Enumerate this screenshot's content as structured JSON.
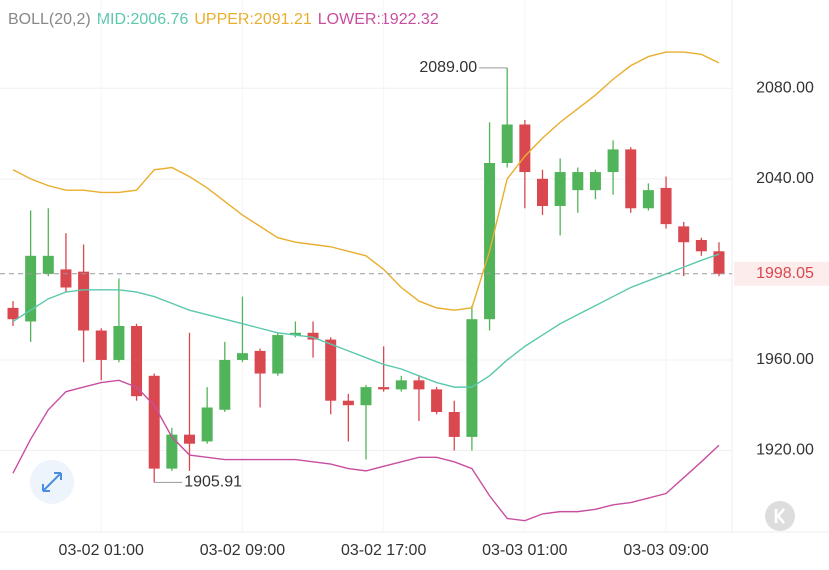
{
  "chart_data": {
    "type": "candlestick",
    "indicator": "BOLL(20,2)",
    "categories": [
      null,
      null,
      null,
      null,
      null,
      "03-02 01:00",
      null,
      null,
      null,
      null,
      null,
      null,
      null,
      "03-02 09:00",
      null,
      null,
      null,
      null,
      null,
      null,
      null,
      "03-02 17:00",
      null,
      null,
      null,
      null,
      null,
      null,
      null,
      "03-03 01:00",
      null,
      null,
      null,
      null,
      null,
      null,
      null,
      "03-03 09:00",
      null,
      null,
      null
    ],
    "open": [
      1983,
      1977,
      1998,
      2000,
      1999,
      1973,
      1960,
      1975,
      1953,
      1912,
      1927,
      1924,
      1938,
      1960,
      1964,
      1954,
      1971,
      1972,
      1969,
      1942,
      1940,
      1948,
      1947,
      1951,
      1947,
      1937,
      1926,
      1978,
      2047,
      2064,
      2040,
      2028,
      2035,
      2035,
      2043,
      2053,
      2027,
      2036,
      2019,
      2013,
      2008
    ],
    "high": [
      1986,
      2026,
      2027,
      2016,
      2011,
      1974,
      1996,
      1976,
      1954,
      1930,
      1972,
      1948,
      1968,
      1988,
      1965,
      1972,
      1977,
      1977,
      1970,
      1945,
      1949,
      1966,
      1953,
      1953,
      1948,
      1942,
      1984,
      2065,
      2089,
      2066,
      2044,
      2049,
      2045,
      2044,
      2057,
      2054,
      2038,
      2041,
      2021,
      2014,
      2012
    ],
    "low": [
      1975,
      1968,
      1997,
      1990,
      1959,
      1951,
      1959,
      1942,
      1905.91,
      1911,
      1911,
      1923,
      1937,
      1959,
      1939,
      1953,
      1970,
      1961,
      1936,
      1924,
      1916,
      1946,
      1946,
      1933,
      1936,
      1920,
      1920,
      1973,
      2045,
      2027,
      2024,
      2015,
      2025,
      2031,
      2033,
      2025,
      2026,
      2018,
      1997,
      2006,
      1997
    ],
    "close": [
      1978,
      2006,
      2006,
      1992,
      1973,
      1960,
      1975,
      1944,
      1912,
      1927,
      1923,
      1939,
      1960,
      1963,
      1954,
      1971,
      1972,
      1969,
      1942,
      1940,
      1948,
      1947,
      1951,
      1947,
      1937,
      1926,
      1978,
      2047,
      2064,
      2043,
      2028,
      2043,
      2043,
      2043,
      2053,
      2027,
      2035,
      2020,
      2012,
      2008,
      1998.05
    ],
    "up_color": "#52b45a",
    "down_color": "#d9474f",
    "series": [
      {
        "name": "MID:",
        "color": "#5bc8ad",
        "values": [
          1977,
          1982,
          1987,
          1990,
          1991,
          1991,
          1991,
          1990,
          1988,
          1985,
          1982,
          1980,
          1978,
          1976,
          1974,
          1972,
          1971,
          1970,
          1967,
          1964,
          1961,
          1958,
          1956,
          1953,
          1950,
          1948,
          1948,
          1953,
          1960,
          1966,
          1971,
          1976,
          1980,
          1984,
          1988,
          1992,
          1995,
          1998,
          2001,
          2004,
          2006.76
        ]
      },
      {
        "name": "UPPER:",
        "color": "#e9ae2e",
        "values": [
          2044,
          2040,
          2037,
          2035,
          2035,
          2034,
          2034,
          2035,
          2044,
          2045,
          2041,
          2036,
          2030,
          2024,
          2019,
          2014,
          2012,
          2011,
          2010,
          2008,
          2006,
          2000,
          1992,
          1986,
          1983,
          1982,
          1983,
          2008,
          2040,
          2050,
          2058,
          2065,
          2071,
          2077,
          2084,
          2090,
          2094,
          2096,
          2096,
          2095,
          2091.21
        ]
      },
      {
        "name": "LOWER:",
        "color": "#c84fa0",
        "values": [
          1910,
          1925,
          1938,
          1946,
          1948,
          1950,
          1951,
          1948,
          1940,
          1926,
          1918,
          1917,
          1916,
          1916,
          1916,
          1916,
          1916,
          1915,
          1914,
          1912,
          1911,
          1913,
          1915,
          1917,
          1917,
          1915,
          1912,
          1900,
          1890,
          1889,
          1892,
          1893,
          1893,
          1894,
          1896,
          1897,
          1899,
          1901,
          1908,
          1915,
          1922.32
        ]
      }
    ],
    "max_label": "2089.00",
    "min_label": "1905.91",
    "ylim": [
      1884,
      2119
    ],
    "yticks": [
      {
        "value": 1920,
        "label": "1920.00"
      },
      {
        "value": 1960,
        "label": "1960.00"
      },
      {
        "value": 2040,
        "label": "2040.00"
      },
      {
        "value": 2080,
        "label": "2080.00"
      }
    ],
    "grid": true
  }
}
